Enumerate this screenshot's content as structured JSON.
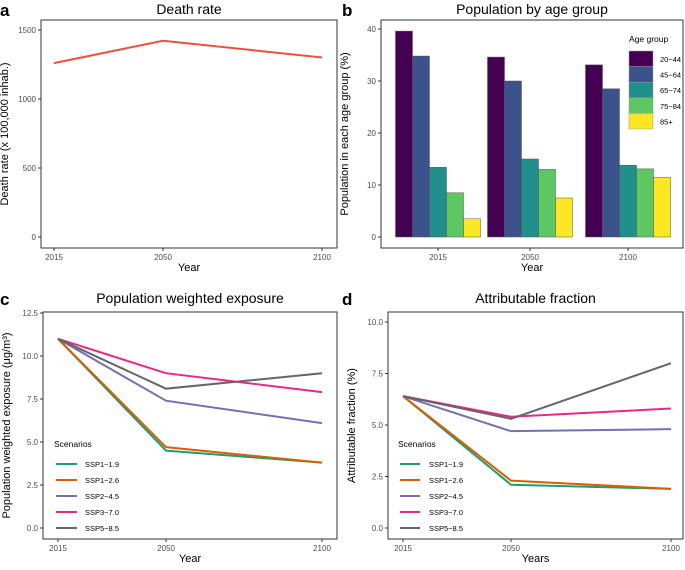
{
  "chart_data": [
    {
      "panel": "a",
      "type": "line",
      "title": "Death rate",
      "xlabel": "Year",
      "ylabel": "Death rate (x 100,000 inhab.)",
      "x": [
        2015,
        2050,
        2100
      ],
      "xticks": [
        "2015",
        "2050",
        "2100"
      ],
      "yticks": [
        "0",
        "500",
        "1000",
        "1500"
      ],
      "ylim": [
        0,
        1500
      ],
      "grid": false,
      "series": [
        {
          "values": [
            1260,
            1422,
            1301
          ],
          "color": "#E8533F"
        }
      ]
    },
    {
      "panel": "b",
      "type": "bar",
      "title": "Population by age group",
      "xlabel": "Year",
      "ylabel": "Population in each age group (%)",
      "categories": [
        "2015",
        "2050",
        "2100"
      ],
      "yticks": [
        "0",
        "10",
        "20",
        "30",
        "40"
      ],
      "ylim": [
        0,
        40
      ],
      "grid": false,
      "legend": {
        "title": "Age group",
        "position": "top-right"
      },
      "series": [
        {
          "name": "20−44",
          "values": [
            39.6,
            34.6,
            33.1
          ],
          "color": "#440154"
        },
        {
          "name": "45−64",
          "values": [
            34.8,
            30.0,
            28.5
          ],
          "color": "#3B528B"
        },
        {
          "name": "65−74",
          "values": [
            13.4,
            15.0,
            13.8
          ],
          "color": "#21908C"
        },
        {
          "name": "75−84",
          "values": [
            8.5,
            13.0,
            13.1
          ],
          "color": "#5DC863"
        },
        {
          "name": "85+",
          "values": [
            3.5,
            7.5,
            11.5
          ],
          "color": "#FDE725"
        }
      ]
    },
    {
      "panel": "c",
      "type": "line",
      "title": "Population weighted exposure",
      "xlabel": "Year",
      "ylabel": "Population weighted exposure (μg/m³)",
      "x": [
        2015,
        2050,
        2100
      ],
      "xticks": [
        "2015",
        "2050",
        "2100"
      ],
      "yticks": [
        "0.0",
        "2.5",
        "5.0",
        "7.5",
        "10.0",
        "12.5"
      ],
      "ylim": [
        0,
        12.5
      ],
      "grid": false,
      "legend": {
        "title": "Scenarios",
        "position": "bottom-left"
      },
      "series": [
        {
          "name": "SSP1−1.9",
          "values": [
            11.0,
            4.5,
            3.8
          ],
          "color": "#1B9E77"
        },
        {
          "name": "SSP1−2.6",
          "values": [
            11.0,
            4.7,
            3.8
          ],
          "color": "#D95F02"
        },
        {
          "name": "SSP2−4.5",
          "values": [
            11.0,
            7.4,
            6.1
          ],
          "color": "#7570B3"
        },
        {
          "name": "SSP3−7.0",
          "values": [
            11.0,
            9.0,
            7.9
          ],
          "color": "#E7298A"
        },
        {
          "name": "SSP5−8.5",
          "values": [
            11.0,
            8.1,
            9.0
          ],
          "color": "#666666"
        }
      ]
    },
    {
      "panel": "d",
      "type": "line",
      "title": "Attributable fraction",
      "xlabel": "Years",
      "ylabel": "Attributable fraction (%)",
      "x": [
        2015,
        2050,
        2100
      ],
      "xticks": [
        "2015",
        "2050",
        "2100"
      ],
      "yticks": [
        "0.0",
        "2.5",
        "5.0",
        "7.5",
        "10.0"
      ],
      "ylim": [
        0,
        10
      ],
      "grid": false,
      "legend": {
        "title": "Scenarios",
        "position": "bottom-left"
      },
      "series": [
        {
          "name": "SSP1−1.9",
          "values": [
            6.4,
            2.1,
            1.9
          ],
          "color": "#1B9E77"
        },
        {
          "name": "SSP1−2.6",
          "values": [
            6.4,
            2.3,
            1.9
          ],
          "color": "#D95F02"
        },
        {
          "name": "SSP2−4.5",
          "values": [
            6.4,
            4.7,
            4.8
          ],
          "color": "#7570B3"
        },
        {
          "name": "SSP3−7.0",
          "values": [
            6.4,
            5.4,
            5.8
          ],
          "color": "#E7298A"
        },
        {
          "name": "SSP5−8.5",
          "values": [
            6.4,
            5.3,
            8.0
          ],
          "color": "#666666"
        }
      ]
    }
  ]
}
